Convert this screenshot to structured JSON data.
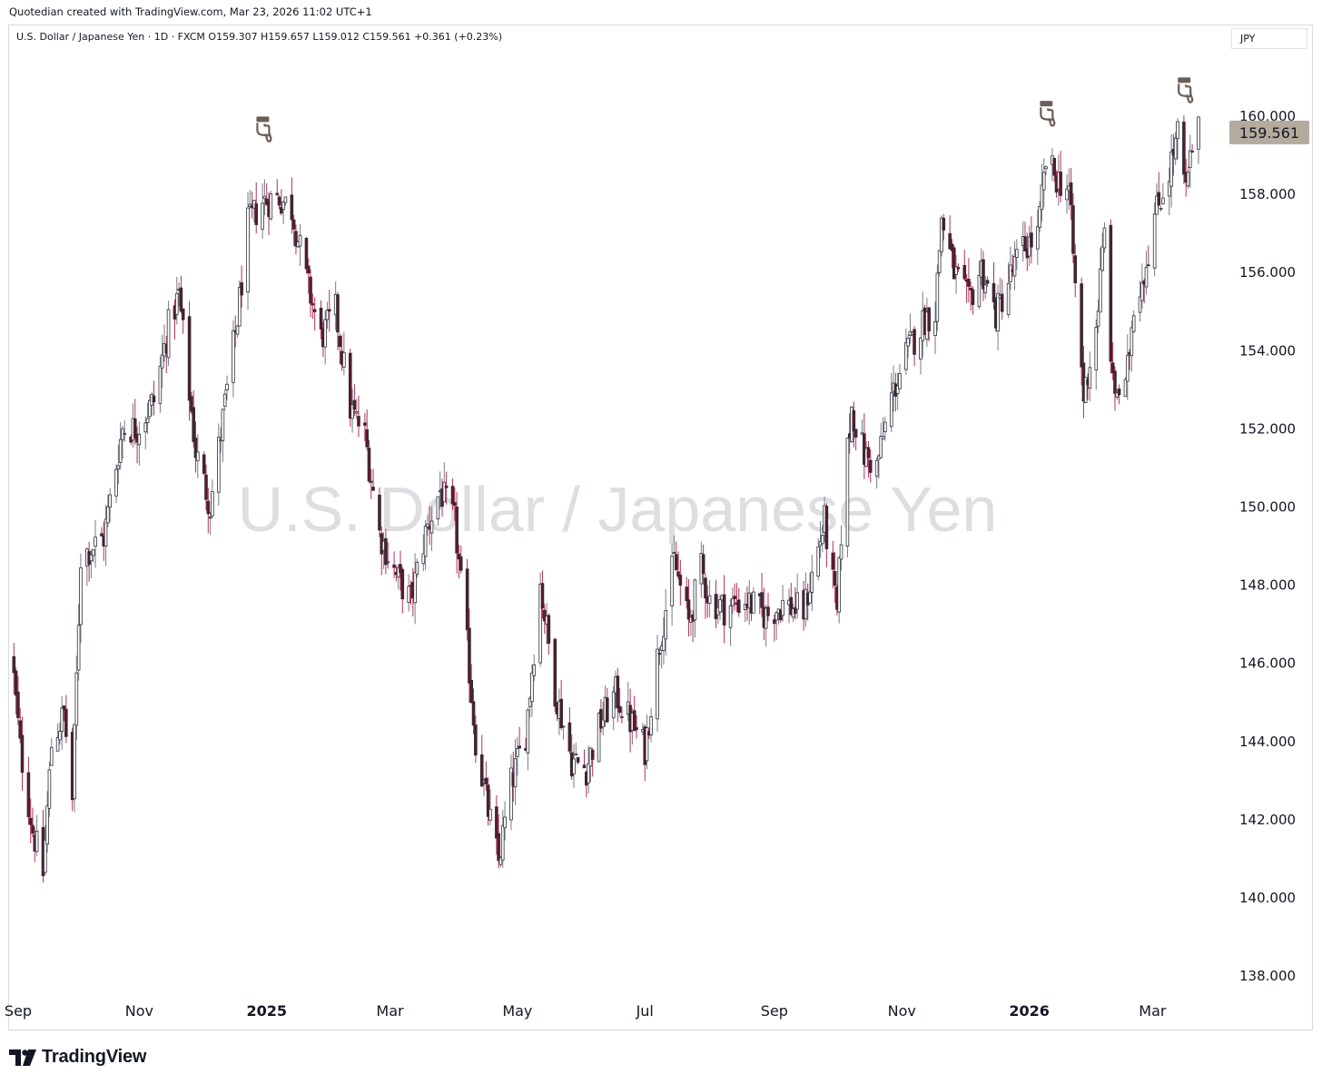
{
  "credit": "Quotedian created with TradingView.com, Mar 23, 2026 11:02 UTC+1",
  "legend": "U.S. Dollar / Japanese Yen · 1D · FXCM  O159.307  H159.657  L159.012  C159.561  +0.361 (+0.23%)",
  "currency_label": "JPY",
  "brand": "TradingView",
  "colors": {
    "up": "#ffffff",
    "down": "#5b1a2a",
    "wick_up": "#787b86",
    "wick_down": "#b1305a",
    "body_border": "#2a2e39",
    "price_tag": "#b5aa9e",
    "marker": "#6b5e57"
  },
  "chart_data": {
    "type": "candlestick",
    "watermark": "U.S. Dollar / Japanese Yen",
    "last_price": 159.561,
    "last_price_label": "159.561",
    "ylim": [
      137.3,
      162.6
    ],
    "y_ticks": [
      {
        "value": 160,
        "label": "160.000"
      },
      {
        "value": 158,
        "label": "158.000"
      },
      {
        "value": 156,
        "label": "156.000"
      },
      {
        "value": 154,
        "label": "154.000"
      },
      {
        "value": 152,
        "label": "152.000"
      },
      {
        "value": 150,
        "label": "150.000"
      },
      {
        "value": 148,
        "label": "148.000"
      },
      {
        "value": 146,
        "label": "146.000"
      },
      {
        "value": 144,
        "label": "144.000"
      },
      {
        "value": 142,
        "label": "142.000"
      },
      {
        "value": 140,
        "label": "140.000"
      },
      {
        "value": 138,
        "label": "138.000"
      }
    ],
    "x_range": [
      "2024-09-01",
      "2026-03-23"
    ],
    "x_ticks": [
      {
        "date": "2024-09-01",
        "label": "Sep",
        "bold": false
      },
      {
        "date": "2024-11-01",
        "label": "Nov",
        "bold": false
      },
      {
        "date": "2025-01-01",
        "label": "2025",
        "bold": true
      },
      {
        "date": "2025-03-01",
        "label": "Mar",
        "bold": false
      },
      {
        "date": "2025-05-01",
        "label": "May",
        "bold": false
      },
      {
        "date": "2025-07-01",
        "label": "Jul",
        "bold": false
      },
      {
        "date": "2025-09-01",
        "label": "Sep",
        "bold": false
      },
      {
        "date": "2025-11-01",
        "label": "Nov",
        "bold": false
      },
      {
        "date": "2026-01-01",
        "label": "2026",
        "bold": true
      },
      {
        "date": "2026-03-01",
        "label": "Mar",
        "bold": false
      }
    ],
    "close_path": [
      [
        "2024-09-01",
        146.2
      ],
      [
        "2024-09-05",
        143.8
      ],
      [
        "2024-09-11",
        141.7
      ],
      [
        "2024-09-16",
        140.6
      ],
      [
        "2024-09-20",
        143.9
      ],
      [
        "2024-09-26",
        144.7
      ],
      [
        "2024-09-30",
        142.5
      ],
      [
        "2024-10-04",
        148.7
      ],
      [
        "2024-10-15",
        149.2
      ],
      [
        "2024-10-24",
        152.0
      ],
      [
        "2024-10-31",
        152.0
      ],
      [
        "2024-11-08",
        152.7
      ],
      [
        "2024-11-15",
        154.6
      ],
      [
        "2024-11-20",
        155.4
      ],
      [
        "2024-11-28",
        151.4
      ],
      [
        "2024-12-05",
        150.0
      ],
      [
        "2024-12-12",
        152.6
      ],
      [
        "2024-12-18",
        154.8
      ],
      [
        "2024-12-23",
        157.2
      ],
      [
        "2024-12-30",
        157.8
      ],
      [
        "2025-01-07",
        157.9
      ],
      [
        "2025-01-13",
        157.6
      ],
      [
        "2025-01-20",
        155.8
      ],
      [
        "2025-01-27",
        154.3
      ],
      [
        "2025-02-03",
        155.0
      ],
      [
        "2025-02-10",
        152.5
      ],
      [
        "2025-02-17",
        151.8
      ],
      [
        "2025-02-24",
        149.3
      ],
      [
        "2025-03-04",
        148.2
      ],
      [
        "2025-03-11",
        147.6
      ],
      [
        "2025-03-18",
        149.3
      ],
      [
        "2025-03-25",
        150.4
      ],
      [
        "2025-04-01",
        149.6
      ],
      [
        "2025-04-07",
        146.4
      ],
      [
        "2025-04-11",
        144.0
      ],
      [
        "2025-04-17",
        142.2
      ],
      [
        "2025-04-22",
        140.9
      ],
      [
        "2025-04-28",
        142.9
      ],
      [
        "2025-05-05",
        144.2
      ],
      [
        "2025-05-12",
        148.0
      ],
      [
        "2025-05-19",
        145.3
      ],
      [
        "2025-05-27",
        143.5
      ],
      [
        "2025-06-03",
        143.3
      ],
      [
        "2025-06-10",
        144.5
      ],
      [
        "2025-06-17",
        145.2
      ],
      [
        "2025-06-24",
        144.5
      ],
      [
        "2025-07-01",
        143.8
      ],
      [
        "2025-07-08",
        146.5
      ],
      [
        "2025-07-15",
        148.6
      ],
      [
        "2025-07-22",
        147.0
      ],
      [
        "2025-07-28",
        148.4
      ],
      [
        "2025-08-01",
        147.6
      ],
      [
        "2025-08-08",
        147.4
      ],
      [
        "2025-08-18",
        147.6
      ],
      [
        "2025-08-28",
        147.2
      ],
      [
        "2025-09-05",
        147.5
      ],
      [
        "2025-09-15",
        147.3
      ],
      [
        "2025-09-25",
        149.6
      ],
      [
        "2025-10-01",
        147.2
      ],
      [
        "2025-10-04",
        150.4
      ],
      [
        "2025-10-08",
        152.5
      ],
      [
        "2025-10-14",
        151.3
      ],
      [
        "2025-10-20",
        151.0
      ],
      [
        "2025-10-27",
        152.8
      ],
      [
        "2025-11-04",
        154.0
      ],
      [
        "2025-11-12",
        154.8
      ],
      [
        "2025-11-17",
        155.0
      ],
      [
        "2025-11-20",
        157.4
      ],
      [
        "2025-11-26",
        156.0
      ],
      [
        "2025-12-03",
        155.2
      ],
      [
        "2025-12-09",
        156.1
      ],
      [
        "2025-12-16",
        154.9
      ],
      [
        "2025-12-23",
        155.9
      ],
      [
        "2025-12-29",
        156.6
      ],
      [
        "2026-01-05",
        156.9
      ],
      [
        "2026-01-09",
        158.8
      ],
      [
        "2026-01-14",
        158.4
      ],
      [
        "2026-01-20",
        158.1
      ],
      [
        "2026-01-23",
        155.6
      ],
      [
        "2026-01-27",
        152.8
      ],
      [
        "2026-02-02",
        154.6
      ],
      [
        "2026-02-06",
        157.0
      ],
      [
        "2026-02-10",
        153.0
      ],
      [
        "2026-02-16",
        152.9
      ],
      [
        "2026-02-20",
        155.2
      ],
      [
        "2026-02-25",
        156.0
      ],
      [
        "2026-03-02",
        157.4
      ],
      [
        "2026-03-09",
        158.6
      ],
      [
        "2026-03-13",
        159.5
      ],
      [
        "2026-03-17",
        158.0
      ],
      [
        "2026-03-20",
        159.2
      ],
      [
        "2026-03-23",
        159.561
      ]
    ],
    "markers": [
      {
        "date": "2024-12-31",
        "price": 158.9,
        "icon": "hand-pointing-down-icon"
      },
      {
        "date": "2026-01-10",
        "price": 159.3,
        "icon": "hand-pointing-down-icon"
      },
      {
        "date": "2026-03-17",
        "price": 159.9,
        "icon": "hand-pointing-down-icon"
      }
    ]
  }
}
